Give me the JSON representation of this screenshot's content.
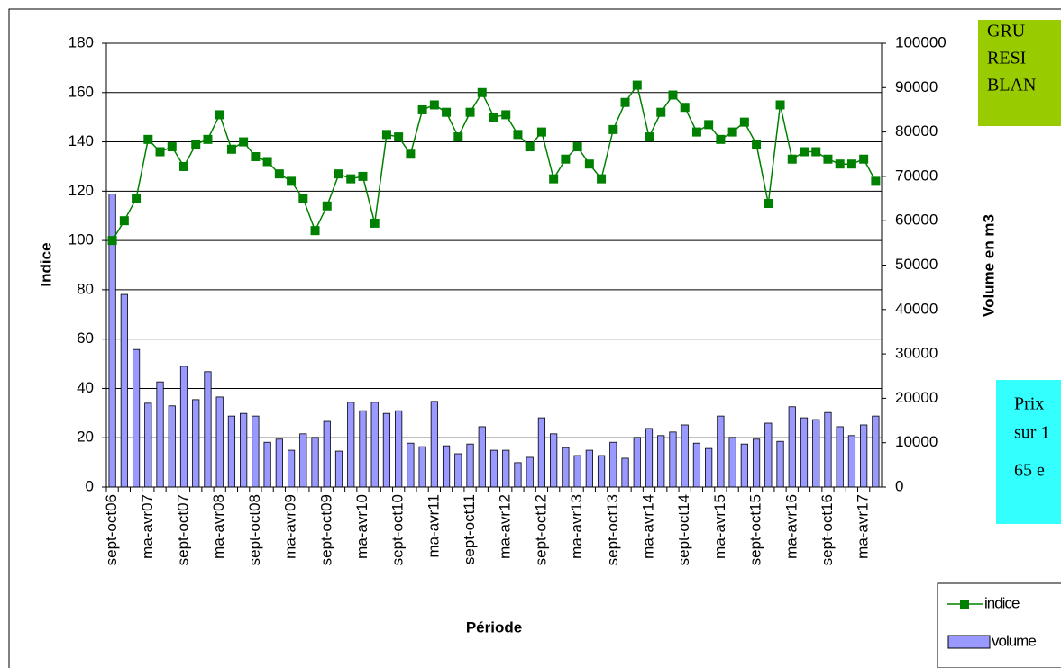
{
  "chart_data": {
    "type": "combo",
    "categories": [
      "sept-oct06",
      null,
      null,
      "ma-avr07",
      null,
      null,
      "sept-oct07",
      null,
      null,
      "ma-avr08",
      null,
      null,
      "sept-oct08",
      null,
      null,
      "ma-avr09",
      null,
      null,
      "sept-oct09",
      null,
      null,
      "ma-avr10",
      null,
      null,
      "sept-oct10",
      null,
      null,
      "ma-avr11",
      null,
      null,
      "sept-oct11",
      null,
      null,
      "ma-avr12",
      null,
      null,
      "sept-oct12",
      null,
      null,
      "ma-avr13",
      null,
      null,
      "sept-oct13",
      null,
      null,
      "ma-avr14",
      null,
      null,
      "sept-oct14",
      null,
      null,
      "ma-avr15",
      null,
      null,
      "sept-oct15",
      null,
      null,
      "ma-avr16",
      null,
      null,
      "sept-oct16",
      null,
      null,
      "ma-avr17",
      null
    ],
    "x_label": "Période",
    "y_label": "Indice",
    "y2_label": "Volume en m3",
    "series": [
      {
        "name": "volume",
        "type": "bar",
        "axis": "y2",
        "color": "#9999ff",
        "values": [
          66000,
          43400,
          31000,
          18900,
          23700,
          18300,
          27200,
          19700,
          26000,
          20300,
          16000,
          16600,
          16000,
          10100,
          10800,
          8300,
          12000,
          11200,
          14800,
          8100,
          19100,
          17200,
          19100,
          16600,
          17200,
          9900,
          9100,
          19300,
          9300,
          7500,
          9700,
          13600,
          8300,
          8300,
          5500,
          6700,
          15600,
          12000,
          8900,
          7100,
          8300,
          7100,
          10100,
          6500,
          11200,
          13200,
          11600,
          12400,
          14000,
          9900,
          8700,
          16000,
          11200,
          9700,
          10800,
          14400,
          10300,
          18100,
          15600,
          15200,
          16800,
          13600,
          11600,
          14000,
          16000
        ]
      },
      {
        "name": "indice",
        "type": "line",
        "color": "#008000",
        "values": [
          100,
          108,
          117,
          141,
          136,
          138,
          130,
          139,
          141,
          151,
          137,
          140,
          134,
          132,
          127,
          124,
          117,
          104,
          114,
          127,
          125,
          126,
          107,
          143,
          142,
          135,
          153,
          155,
          152,
          142,
          152,
          160,
          150,
          151,
          143,
          138,
          144,
          125,
          133,
          138,
          131,
          125,
          145,
          156,
          163,
          142,
          152,
          159,
          154,
          144,
          147,
          141,
          144,
          148,
          139,
          115,
          155,
          133,
          136,
          136,
          133,
          131,
          131,
          133,
          124
        ]
      }
    ],
    "ylim": [
      0,
      180
    ],
    "yticks": [
      0,
      20,
      40,
      60,
      80,
      100,
      120,
      140,
      160,
      180
    ],
    "y2lim": [
      0,
      100000
    ],
    "y2ticks": [
      0,
      10000,
      20000,
      30000,
      40000,
      50000,
      60000,
      70000,
      80000,
      90000,
      100000
    ],
    "grid": true,
    "legend": "lower right"
  },
  "notes": [
    {
      "lines": [
        "GRU",
        "RESI",
        "BLAN"
      ],
      "color": "#99cc00"
    },
    {
      "lines": [
        "Prix",
        "sur 1",
        "65 e"
      ],
      "color": "#33ffff"
    }
  ]
}
